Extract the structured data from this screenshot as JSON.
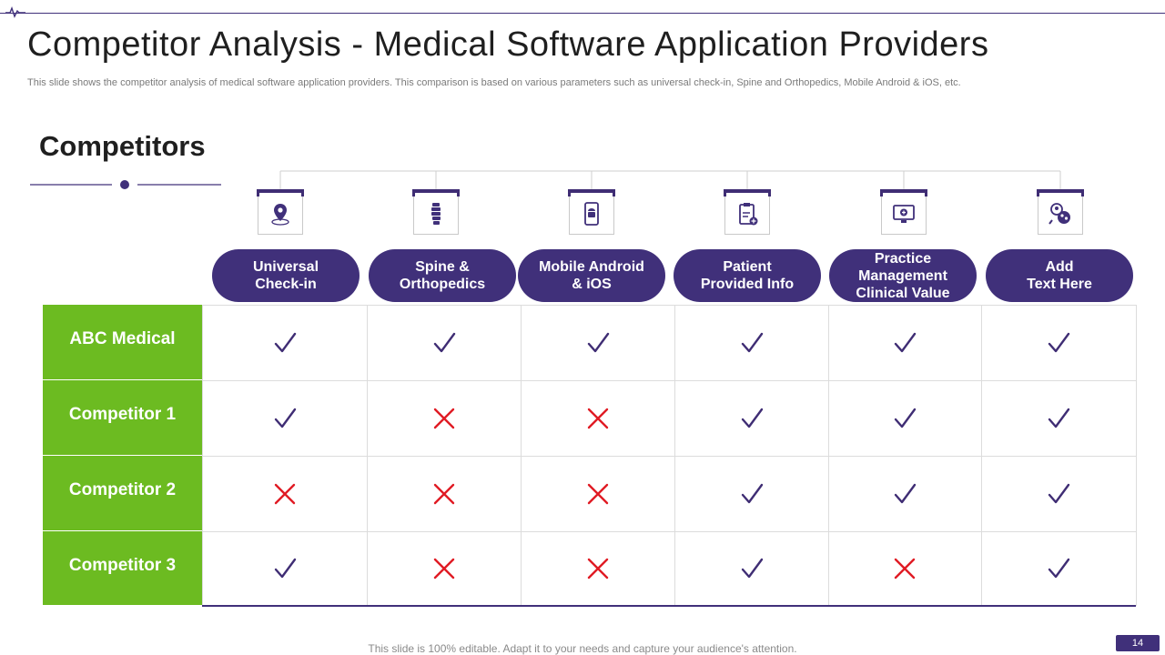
{
  "slide": {
    "title": "Competitor Analysis - Medical Software Application Providers",
    "subtitle": "This slide shows the competitor analysis of medical software application providers. This comparison is based on various parameters such as universal check-in, Spine and Orthopedics, Mobile Android & iOS, etc.",
    "section_heading": "Competitors",
    "footer": "This slide is 100% editable. Adapt it to your needs and capture your audience's attention.",
    "page_number": "14"
  },
  "colors": {
    "accent_purple": "#40307a",
    "row_green": "#6cbb21",
    "check": "#3f2d74",
    "cross": "#e01b24"
  },
  "features": [
    {
      "label": "Universal\nCheck-in",
      "icon": "location-pin-icon"
    },
    {
      "label": "Spine &\nOrthopedics",
      "icon": "spine-icon"
    },
    {
      "label": "Mobile Android\n& iOS",
      "icon": "mobile-android-icon"
    },
    {
      "label": "Patient\nProvided Info",
      "icon": "medical-clipboard-icon"
    },
    {
      "label": "Practice\nManagement\nClinical Value",
      "icon": "medical-monitor-icon"
    },
    {
      "label": "Add\nText Here",
      "icon": "team-search-icon"
    }
  ],
  "competitors": [
    {
      "name": "ABC Medical",
      "values": [
        "check",
        "check",
        "check",
        "check",
        "check",
        "check"
      ]
    },
    {
      "name": "Competitor 1",
      "values": [
        "check",
        "cross",
        "cross",
        "check",
        "check",
        "check"
      ]
    },
    {
      "name": "Competitor 2",
      "values": [
        "cross",
        "cross",
        "cross",
        "check",
        "check",
        "check"
      ]
    },
    {
      "name": "Competitor 3",
      "values": [
        "check",
        "cross",
        "cross",
        "check",
        "cross",
        "check"
      ]
    }
  ]
}
